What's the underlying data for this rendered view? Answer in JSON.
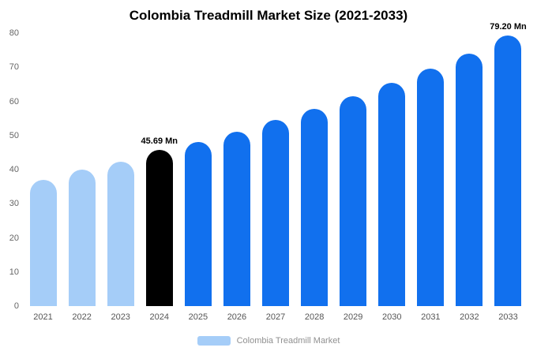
{
  "title": "Colombia Treadmill Market Size (2021-2033)",
  "legend": {
    "label": "Colombia Treadmill Market",
    "swatch_color": "#a5cdf8"
  },
  "colors": {
    "light_blue": "#a5cdf8",
    "blue": "#1170ee",
    "highlight_black": "#000000"
  },
  "chart_data": {
    "type": "bar",
    "title": "Colombia Treadmill Market Size (2021-2033)",
    "xlabel": "",
    "ylabel": "",
    "categories": [
      "2021",
      "2022",
      "2023",
      "2024",
      "2025",
      "2026",
      "2027",
      "2028",
      "2029",
      "2030",
      "2031",
      "2032",
      "2033"
    ],
    "values": [
      37.0,
      40.0,
      42.4,
      45.69,
      48.0,
      51.0,
      54.5,
      57.7,
      61.5,
      65.5,
      69.7,
      74.0,
      79.2
    ],
    "bar_colors": [
      "#a5cdf8",
      "#a5cdf8",
      "#a5cdf8",
      "#000000",
      "#1170ee",
      "#1170ee",
      "#1170ee",
      "#1170ee",
      "#1170ee",
      "#1170ee",
      "#1170ee",
      "#1170ee",
      "#1170ee"
    ],
    "annotations": [
      {
        "index": 3,
        "text": "45.69 Mn"
      },
      {
        "index": 12,
        "text": "79.20 Mn"
      }
    ],
    "ylim": [
      0,
      80
    ],
    "yticks": [
      0,
      10,
      20,
      30,
      40,
      50,
      60,
      70,
      80
    ],
    "grid": false,
    "legend_position": "bottom",
    "legend_entries": [
      "Colombia Treadmill Market"
    ]
  }
}
